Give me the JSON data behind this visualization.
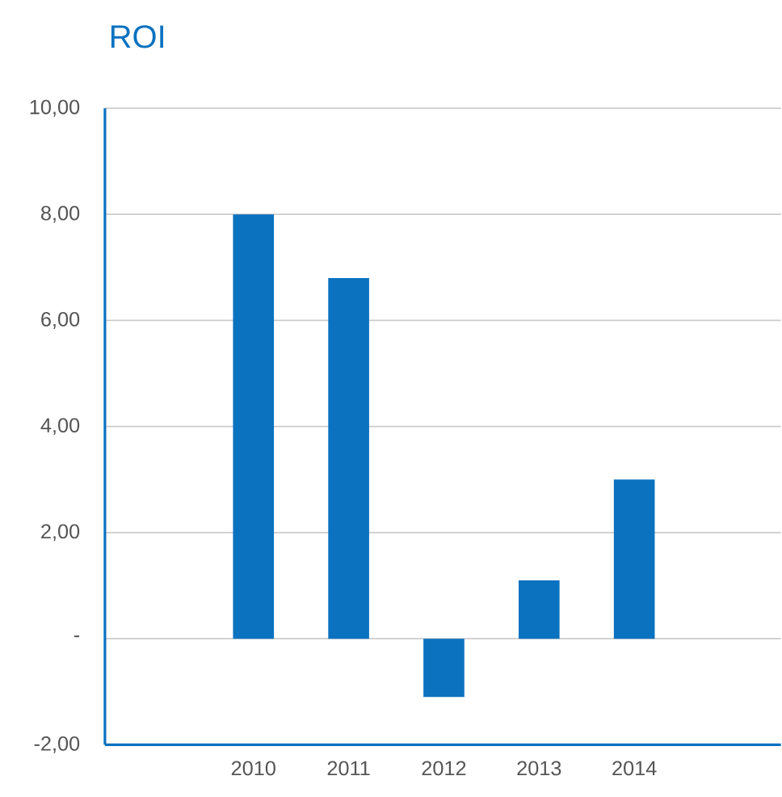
{
  "chart_data": {
    "type": "bar",
    "title": "ROI",
    "categories": [
      "2010",
      "2011",
      "2012",
      "2013",
      "2014"
    ],
    "values": [
      8.0,
      6.8,
      -1.1,
      1.1,
      3.0
    ],
    "color": "#0b72c0",
    "ylim": [
      -2,
      10
    ],
    "yticks": [
      {
        "value": -2,
        "label": "-2,00"
      },
      {
        "value": 0,
        "label": "-"
      },
      {
        "value": 2,
        "label": "2,00"
      },
      {
        "value": 4,
        "label": "4,00"
      },
      {
        "value": 6,
        "label": "6,00"
      },
      {
        "value": 8,
        "label": "8,00"
      },
      {
        "value": 10,
        "label": "10,00"
      }
    ],
    "grid": "y"
  }
}
